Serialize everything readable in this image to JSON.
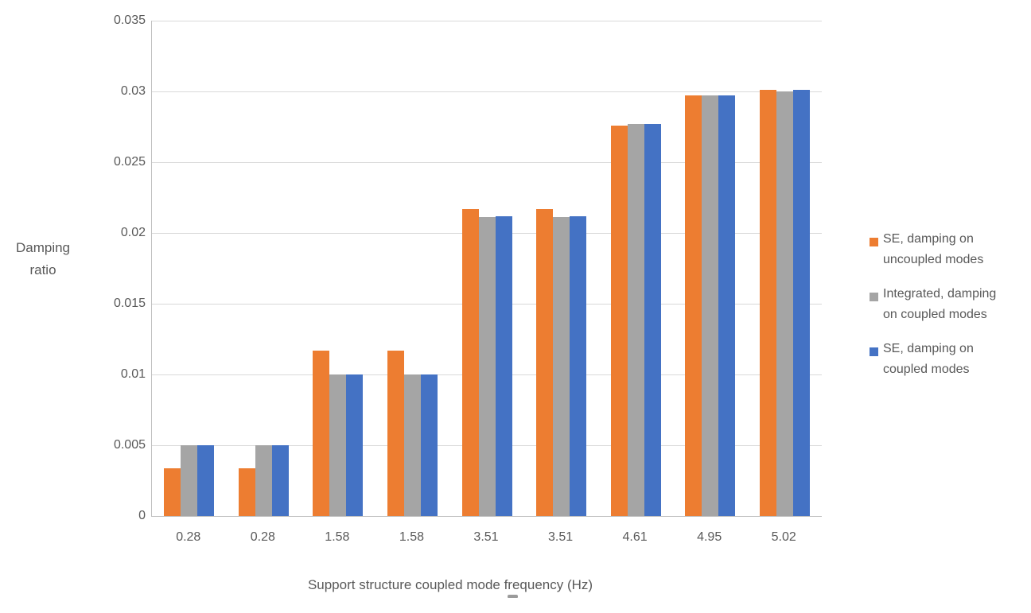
{
  "chart_data": {
    "type": "bar",
    "title": "",
    "xlabel": "Support structure coupled mode frequency (Hz)",
    "ylabel": "Damping ratio",
    "ylabel_lines": [
      "Damping",
      "ratio"
    ],
    "categories": [
      "0.28",
      "0.28",
      "1.58",
      "1.58",
      "3.51",
      "3.51",
      "4.61",
      "4.95",
      "5.02"
    ],
    "series": [
      {
        "name": "SE, damping on uncoupled modes",
        "legend_lines": [
          "SE, damping on",
          "uncoupled modes"
        ],
        "color": "#ED7D31",
        "values": [
          0.0034,
          0.0034,
          0.0117,
          0.0117,
          0.0217,
          0.0217,
          0.0276,
          0.0297,
          0.0301
        ]
      },
      {
        "name": "Integrated, damping on coupled modes",
        "legend_lines": [
          "Integrated, damping",
          "on coupled modes"
        ],
        "color": "#A5A5A5",
        "values": [
          0.005,
          0.005,
          0.01,
          0.01,
          0.0211,
          0.0211,
          0.0277,
          0.0297,
          0.03
        ]
      },
      {
        "name": "SE, damping on coupled modes",
        "legend_lines": [
          "SE, damping on",
          "coupled modes"
        ],
        "color": "#4472C4",
        "values": [
          0.005,
          0.005,
          0.01,
          0.01,
          0.0212,
          0.0212,
          0.0277,
          0.0297,
          0.0301
        ]
      }
    ],
    "ylim": [
      0,
      0.035
    ],
    "yticks": [
      0,
      0.005,
      0.01,
      0.015,
      0.02,
      0.025,
      0.03,
      0.035
    ],
    "ytick_labels": [
      "0",
      "0.005",
      "0.01",
      "0.015",
      "0.02",
      "0.025",
      "0.03",
      "0.035"
    ],
    "grid": true,
    "legend_position": "right",
    "colors": {
      "axis_line": "#BFBFBF",
      "gridline": "#D9D9D9",
      "text": "#595959",
      "background": "#FFFFFF"
    }
  }
}
